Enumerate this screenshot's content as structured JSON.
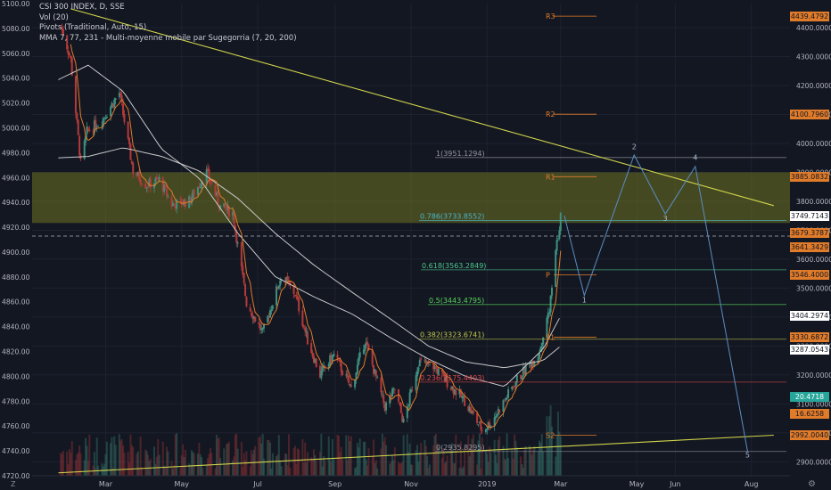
{
  "header": {
    "symbol_line": "CSI 300 INDEX, D, SSE",
    "vol_line": "Vol (20)",
    "pivots_line": "Pivots (Traditional, Auto, 15)",
    "mma_line": "MMA 7, 77, 231 - Multi-moyenne mobile par Sugegorria (7, 20, 200)"
  },
  "colors": {
    "background": "#131722",
    "trendline": "#d1d44a",
    "zone": "#6f7223",
    "wave": "#5a8ec2",
    "ma_fast": "#e07b2a",
    "ma_slow": "#c8c8c8",
    "candle_up": "#3f8f7f",
    "candle_down": "#b43a3a"
  },
  "icons": {
    "corner": "z-icon",
    "settings": "gear-icon"
  },
  "chart_data": {
    "type": "candlestick",
    "title": "CSI 300 INDEX, D, SSE",
    "left_axis": {
      "ticks": [
        5100,
        5080,
        5060,
        5040,
        5020,
        5000,
        4980,
        4960,
        4940,
        4920,
        4900,
        4880,
        4860,
        4840,
        4820,
        4800,
        4780,
        4760,
        4740,
        4720
      ],
      "labels": [
        "5100.00",
        "5080.00",
        "5060.00",
        "5040.00",
        "5020.00",
        "5000.00",
        "4980.00",
        "4960.00",
        "4940.00",
        "4920.00",
        "4900.00",
        "4880.00",
        "4860.00",
        "4840.00",
        "4820.00",
        "4800.00",
        "4780.00",
        "4760.00",
        "4740.00",
        "4720.00"
      ]
    },
    "right_axis": {
      "ticks": [
        4400,
        4300,
        4200,
        4100,
        4000,
        3900,
        3800,
        3700,
        3600,
        3500,
        3400,
        3300,
        3200,
        3100,
        3000,
        2900
      ],
      "labels": [
        "4400.0000",
        "4300.0000",
        "4200.0000",
        "4100.0000",
        "4000.0000",
        "3900.0000",
        "3800.0000",
        "3700.0000",
        "3600.0000",
        "3500.0000",
        "3400.0000",
        "3300.0000",
        "3200.0000",
        "3100.0000",
        "3000.0000",
        "2900.0000"
      ],
      "range": [
        2852,
        4483
      ]
    },
    "x_axis": {
      "labels": [
        "Mar",
        "May",
        "Jul",
        "Sep",
        "Nov",
        "2019",
        "Mar",
        "May",
        "Jun",
        "Aug"
      ],
      "dates": [
        "2018-03",
        "2018-05",
        "2018-07",
        "2018-09",
        "2018-11",
        "2019-01",
        "2019-03",
        "2019-05",
        "2019-06",
        "2019-08"
      ]
    },
    "price_tags": [
      {
        "value": "4439.4792",
        "price": 4439.48,
        "bg": "#e07b2a",
        "fg": "#131722"
      },
      {
        "value": "4100.7960",
        "price": 4100.8,
        "bg": "#e07b2a",
        "fg": "#131722"
      },
      {
        "value": "3885.0832",
        "price": 3885.08,
        "bg": "#e07b2a",
        "fg": "#131722"
      },
      {
        "value": "3749.7143",
        "price": 3749.71,
        "bg": "#ffffff",
        "fg": "#131722"
      },
      {
        "value": "3679.3787",
        "price": 3690.0,
        "bg": "#e07b2a",
        "fg": "#131722"
      },
      {
        "value": "3641.3429",
        "price": 3641.34,
        "bg": "#e07b2a",
        "fg": "#131722"
      },
      {
        "value": "3546.4000",
        "price": 3546.4,
        "bg": "#e07b2a",
        "fg": "#131722"
      },
      {
        "value": "3404.2974",
        "price": 3404.3,
        "bg": "#ffffff",
        "fg": "#131722"
      },
      {
        "value": "3330.6872",
        "price": 3330.69,
        "bg": "#e07b2a",
        "fg": "#131722"
      },
      {
        "value": "3287.0543",
        "price": 3287.05,
        "bg": "#ffffff",
        "fg": "#131722"
      },
      {
        "value": "20.4718",
        "price": 3126.0,
        "bg": "#26a69a",
        "fg": "#ffffff"
      },
      {
        "value": "16.6258",
        "price": 3066.0,
        "bg": "#e07b2a",
        "fg": "#131722"
      },
      {
        "value": "2992.0040",
        "price": 2992.0,
        "bg": "#e07b2a",
        "fg": "#131722"
      }
    ],
    "fib_levels": [
      {
        "label": "1(3951.1294)",
        "price": 3951.13,
        "color": "#9598a1",
        "x0": 488,
        "x1": 882
      },
      {
        "label": "0.786(3733.8552)",
        "price": 3733.86,
        "color": "#4bb6c7",
        "x0": 470,
        "x1": 882
      },
      {
        "label": "0.618(3563.2849)",
        "price": 3563.28,
        "color": "#4bc88c",
        "x0": 472,
        "x1": 882
      },
      {
        "label": "0.5(3443.4795)",
        "price": 3443.48,
        "color": "#57d45a",
        "x0": 480,
        "x1": 882
      },
      {
        "label": "0.382(3323.6741)",
        "price": 3323.67,
        "color": "#c3c84a",
        "x0": 470,
        "x1": 882
      },
      {
        "label": "0.236(3175.4403)",
        "price": 3175.44,
        "color": "#e04848",
        "x0": 470,
        "x1": 882
      },
      {
        "label": "0(2935.8295)",
        "price": 2935.83,
        "color": "#9598a1",
        "x0": 488,
        "x1": 882
      }
    ],
    "pivots": [
      {
        "label": "R3",
        "price": 4439.48
      },
      {
        "label": "R2",
        "price": 4100.8
      },
      {
        "label": "R1",
        "price": 3885.08
      },
      {
        "label": "P",
        "price": 3546.4
      },
      {
        "label": "S1",
        "price": 3330.69
      },
      {
        "label": "S2",
        "price": 2992.0
      }
    ],
    "wave_labels": [
      "1",
      "2",
      "3",
      "4",
      "5"
    ],
    "wave_points": [
      {
        "date": "2019-03-04",
        "value": 3749.71
      },
      {
        "date": "2019-03-20",
        "value": 3475.0
      },
      {
        "date": "2019-04-29",
        "value": 3960.0
      },
      {
        "date": "2019-05-24",
        "value": 3756.0
      },
      {
        "date": "2019-06-17",
        "value": 3920.0
      },
      {
        "date": "2019-07-29",
        "value": 2935.0
      }
    ],
    "wave_label_points": [
      {
        "label": "1",
        "date": "2019-03-20",
        "value": 3450.0
      },
      {
        "label": "2",
        "date": "2019-04-29",
        "value": 3980.0
      },
      {
        "label": "3",
        "date": "2019-05-24",
        "value": 3732.0
      },
      {
        "label": "4",
        "date": "2019-06-17",
        "value": 3943.0
      },
      {
        "label": "5",
        "date": "2019-07-29",
        "value": 2915.0
      }
    ],
    "trendlines": [
      {
        "start": {
          "date": "2018-02-01",
          "value": 4465.0
        },
        "end": {
          "date": "2019-08-19",
          "value": 3785.0
        }
      },
      {
        "start": {
          "date": "2018-01-22",
          "value": 2862.0
        },
        "end": {
          "date": "2019-08-19",
          "value": 2992.0
        }
      }
    ],
    "zone": {
      "high": 3900.0,
      "low": 3725.0
    },
    "dashed_level": 3680.0,
    "ohlc_anchors": [
      {
        "date": "2018-01-24",
        "value": 4403
      },
      {
        "date": "2018-01-26",
        "value": 4380
      },
      {
        "date": "2018-02-01",
        "value": 4290
      },
      {
        "date": "2018-02-09",
        "value": 3930
      },
      {
        "date": "2018-02-14",
        "value": 4040
      },
      {
        "date": "2018-02-26",
        "value": 4080
      },
      {
        "date": "2018-03-12",
        "value": 4175
      },
      {
        "date": "2018-03-23",
        "value": 3905
      },
      {
        "date": "2018-04-03",
        "value": 3855
      },
      {
        "date": "2018-04-13",
        "value": 3875
      },
      {
        "date": "2018-04-23",
        "value": 3790
      },
      {
        "date": "2018-05-07",
        "value": 3800
      },
      {
        "date": "2018-05-21",
        "value": 3900
      },
      {
        "date": "2018-06-01",
        "value": 3780
      },
      {
        "date": "2018-06-11",
        "value": 3760
      },
      {
        "date": "2018-06-22",
        "value": 3450
      },
      {
        "date": "2018-07-05",
        "value": 3345
      },
      {
        "date": "2018-07-20",
        "value": 3545
      },
      {
        "date": "2018-07-31",
        "value": 3480
      },
      {
        "date": "2018-08-10",
        "value": 3320
      },
      {
        "date": "2018-08-20",
        "value": 3200
      },
      {
        "date": "2018-08-31",
        "value": 3270
      },
      {
        "date": "2018-09-14",
        "value": 3155
      },
      {
        "date": "2018-09-25",
        "value": 3320
      },
      {
        "date": "2018-10-11",
        "value": 3090
      },
      {
        "date": "2018-10-19",
        "value": 3150
      },
      {
        "date": "2018-10-26",
        "value": 3035
      },
      {
        "date": "2018-11-07",
        "value": 3245
      },
      {
        "date": "2018-11-19",
        "value": 3230
      },
      {
        "date": "2018-11-30",
        "value": 3175
      },
      {
        "date": "2018-12-14",
        "value": 3110
      },
      {
        "date": "2018-12-28",
        "value": 3010
      },
      {
        "date": "2019-01-04",
        "value": 3035
      },
      {
        "date": "2019-01-14",
        "value": 3105
      },
      {
        "date": "2019-01-25",
        "value": 3185
      },
      {
        "date": "2019-02-11",
        "value": 3270
      },
      {
        "date": "2019-02-20",
        "value": 3420
      },
      {
        "date": "2019-02-25",
        "value": 3620
      },
      {
        "date": "2019-03-01",
        "value": 3749.71
      }
    ],
    "volume_scale_max": 40,
    "volume_ticks": [],
    "ma_slow_anchors": [
      {
        "date": "2018-01-22",
        "value": 3950
      },
      {
        "date": "2018-02-15",
        "value": 3955
      },
      {
        "date": "2018-03-15",
        "value": 3985
      },
      {
        "date": "2018-04-15",
        "value": 3955
      },
      {
        "date": "2018-05-15",
        "value": 3905
      },
      {
        "date": "2018-06-15",
        "value": 3810
      },
      {
        "date": "2018-07-15",
        "value": 3690
      },
      {
        "date": "2018-08-15",
        "value": 3580
      },
      {
        "date": "2018-09-15",
        "value": 3485
      },
      {
        "date": "2018-10-15",
        "value": 3395
      },
      {
        "date": "2018-11-15",
        "value": 3300
      },
      {
        "date": "2018-12-15",
        "value": 3245
      },
      {
        "date": "2019-01-15",
        "value": 3225
      },
      {
        "date": "2019-02-15",
        "value": 3250
      },
      {
        "date": "2019-03-01",
        "value": 3300
      }
    ],
    "ma_mid_anchors": [
      {
        "date": "2018-01-22",
        "value": 4220
      },
      {
        "date": "2018-02-15",
        "value": 4270
      },
      {
        "date": "2018-03-15",
        "value": 4180
      },
      {
        "date": "2018-04-15",
        "value": 3980
      },
      {
        "date": "2018-05-15",
        "value": 3880
      },
      {
        "date": "2018-06-15",
        "value": 3690
      },
      {
        "date": "2018-07-15",
        "value": 3540
      },
      {
        "date": "2018-08-15",
        "value": 3470
      },
      {
        "date": "2018-09-15",
        "value": 3410
      },
      {
        "date": "2018-10-15",
        "value": 3330
      },
      {
        "date": "2018-11-15",
        "value": 3255
      },
      {
        "date": "2018-12-15",
        "value": 3195
      },
      {
        "date": "2019-01-15",
        "value": 3160
      },
      {
        "date": "2019-02-15",
        "value": 3290
      },
      {
        "date": "2019-03-01",
        "value": 3404
      }
    ]
  }
}
